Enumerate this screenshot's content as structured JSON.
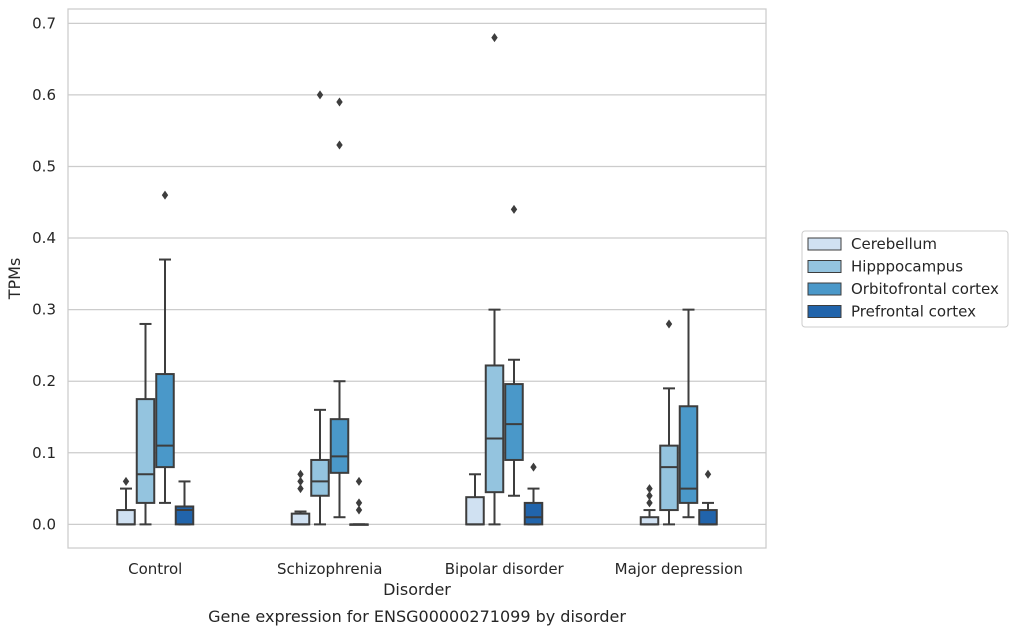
{
  "chart_data": {
    "type": "box",
    "title": "",
    "caption": "Gene expression for ENSG00000271099 by disorder",
    "xlabel": "Disorder",
    "ylabel": "TPMs",
    "ylim": [
      -0.033,
      0.72
    ],
    "yticks": [
      0.0,
      0.1,
      0.2,
      0.3,
      0.4,
      0.5,
      0.6,
      0.7
    ],
    "ytick_labels": [
      "0.0",
      "0.1",
      "0.2",
      "0.3",
      "0.4",
      "0.5",
      "0.6",
      "0.7"
    ],
    "grid": "horizontal",
    "legend_position": "right",
    "categories": [
      "Control",
      "Schizophrenia",
      "Bipolar disorder",
      "Major depression"
    ],
    "series": [
      {
        "name": "Cerebellum",
        "color": "#d0e1f2",
        "boxes": [
          {
            "whislo": 0.0,
            "q1": 0.0,
            "med": 0.0,
            "q3": 0.02,
            "whishi": 0.05,
            "fliers": [
              0.06
            ]
          },
          {
            "whislo": 0.0,
            "q1": 0.0,
            "med": 0.0,
            "q3": 0.015,
            "whishi": 0.018,
            "fliers": [
              0.05,
              0.06,
              0.07
            ]
          },
          {
            "whislo": 0.0,
            "q1": 0.0,
            "med": 0.0,
            "q3": 0.038,
            "whishi": 0.07,
            "fliers": []
          },
          {
            "whislo": 0.0,
            "q1": 0.0,
            "med": 0.0,
            "q3": 0.01,
            "whishi": 0.02,
            "fliers": [
              0.03,
              0.04,
              0.05
            ]
          }
        ]
      },
      {
        "name": "Hipppocampus",
        "color": "#94c4df",
        "boxes": [
          {
            "whislo": 0.0,
            "q1": 0.03,
            "med": 0.07,
            "q3": 0.175,
            "whishi": 0.28,
            "fliers": []
          },
          {
            "whislo": 0.0,
            "q1": 0.04,
            "med": 0.06,
            "q3": 0.09,
            "whishi": 0.16,
            "fliers": [
              0.6
            ]
          },
          {
            "whislo": 0.0,
            "q1": 0.045,
            "med": 0.12,
            "q3": 0.222,
            "whishi": 0.3,
            "fliers": [
              0.68
            ]
          },
          {
            "whislo": 0.0,
            "q1": 0.02,
            "med": 0.08,
            "q3": 0.11,
            "whishi": 0.19,
            "fliers": [
              0.28
            ]
          }
        ]
      },
      {
        "name": "Orbitofrontal cortex",
        "color": "#4a98c9",
        "boxes": [
          {
            "whislo": 0.03,
            "q1": 0.08,
            "med": 0.11,
            "q3": 0.21,
            "whishi": 0.37,
            "fliers": [
              0.46
            ]
          },
          {
            "whislo": 0.01,
            "q1": 0.072,
            "med": 0.095,
            "q3": 0.147,
            "whishi": 0.2,
            "fliers": [
              0.53,
              0.59
            ]
          },
          {
            "whislo": 0.04,
            "q1": 0.09,
            "med": 0.14,
            "q3": 0.196,
            "whishi": 0.23,
            "fliers": [
              0.44
            ]
          },
          {
            "whislo": 0.01,
            "q1": 0.03,
            "med": 0.05,
            "q3": 0.165,
            "whishi": 0.3,
            "fliers": []
          }
        ]
      },
      {
        "name": "Prefrontal cortex",
        "color": "#2164ab",
        "boxes": [
          {
            "whislo": 0.0,
            "q1": 0.0,
            "med": 0.02,
            "q3": 0.025,
            "whishi": 0.06,
            "fliers": []
          },
          {
            "whislo": 0.0,
            "q1": 0.0,
            "med": 0.0,
            "q3": 0.0,
            "whishi": 0.0,
            "fliers": [
              0.02,
              0.03,
              0.06
            ]
          },
          {
            "whislo": 0.0,
            "q1": 0.0,
            "med": 0.01,
            "q3": 0.03,
            "whishi": 0.05,
            "fliers": [
              0.08
            ]
          },
          {
            "whislo": 0.0,
            "q1": 0.0,
            "med": 0.0,
            "q3": 0.02,
            "whishi": 0.03,
            "fliers": [
              0.07
            ]
          }
        ]
      }
    ]
  }
}
